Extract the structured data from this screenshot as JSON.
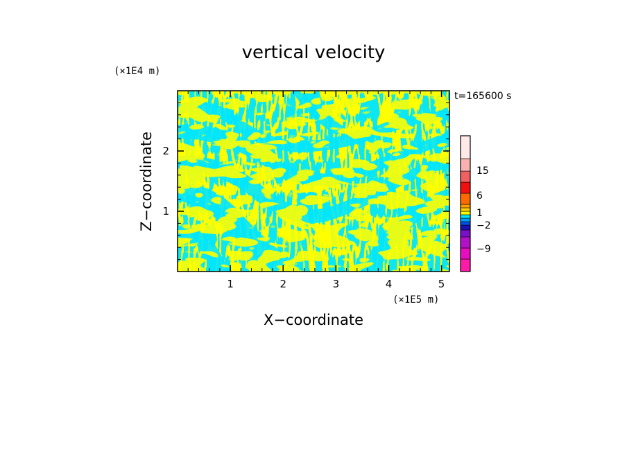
{
  "chart_data": {
    "type": "heatmap",
    "title": "vertical velocity",
    "xlabel": "X−coordinate",
    "ylabel": "Z−coordinate",
    "x_unit": "(×1E5 m)",
    "y_unit": "(×1E4 m)",
    "time_label": "t=165600 s",
    "xlim": [
      0,
      5.15
    ],
    "ylim": [
      0,
      3.0
    ],
    "x_ticks": [
      1,
      2,
      3,
      4,
      5
    ],
    "x_tick_labels": [
      "1",
      "2",
      "3",
      "4",
      "5"
    ],
    "y_ticks": [
      1,
      2
    ],
    "y_tick_labels": [
      "1",
      "2"
    ],
    "colors": {
      "positive": "#ffff00",
      "negative": "#00e5ff"
    },
    "colorbar": {
      "levels": [
        {
          "color": "#ff1aa8"
        },
        {
          "color": "#e60ec0"
        },
        {
          "color": "#b410c8"
        },
        {
          "color": "#7a10c8"
        },
        {
          "color": "#1a10b4"
        },
        {
          "color": "#0050e6"
        },
        {
          "color": "#00a0ff"
        },
        {
          "color": "#00e5ff"
        },
        {
          "color": "#ffff00"
        },
        {
          "color": "#ffd200"
        },
        {
          "color": "#ffa000"
        },
        {
          "color": "#ff6a00"
        },
        {
          "color": "#f01010"
        },
        {
          "color": "#f06060"
        },
        {
          "color": "#f8b0b0"
        },
        {
          "color": "#ffe8e8"
        }
      ],
      "labels": [
        "15",
        "6",
        "1",
        "−2",
        "−9"
      ]
    }
  }
}
